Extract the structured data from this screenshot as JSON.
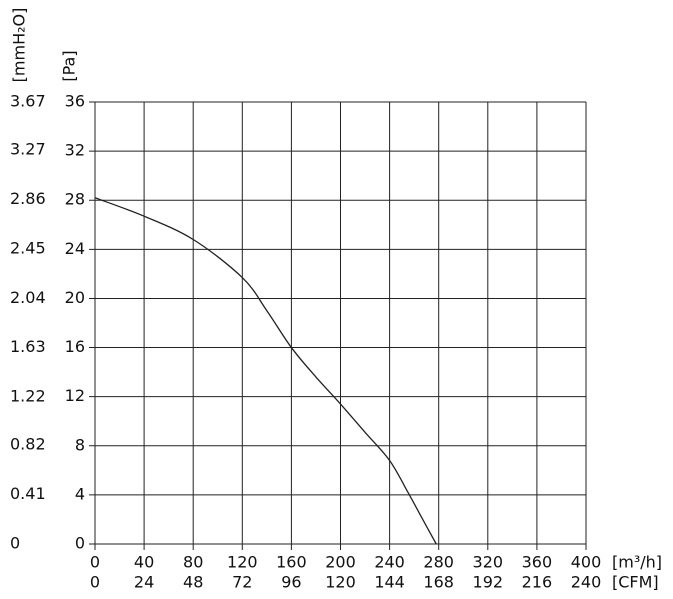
{
  "chart_data": {
    "type": "line",
    "x": [
      0,
      40,
      80,
      120,
      140,
      160,
      180,
      200,
      220,
      240,
      255,
      267,
      278
    ],
    "values": [
      28.2,
      26.7,
      24.8,
      21.7,
      19.0,
      16.0,
      13.6,
      11.4,
      9.1,
      6.8,
      4.2,
      2.0,
      0
    ],
    "color": "#222222",
    "xlim": [
      0,
      400
    ],
    "xticks": [
      0,
      40,
      80,
      120,
      160,
      200,
      240,
      280,
      320,
      360,
      400
    ],
    "x2lim": [
      0,
      240
    ],
    "x2ticks": [
      0,
      24,
      48,
      72,
      96,
      120,
      144,
      168,
      192,
      216,
      240
    ],
    "ylim": [
      0,
      36
    ],
    "yticks": [
      0,
      4,
      8,
      12,
      16,
      20,
      24,
      28,
      32,
      36
    ],
    "y2lim": [
      0,
      3.67
    ],
    "y2ticks": [
      0,
      0.41,
      0.82,
      1.22,
      1.63,
      2.04,
      2.45,
      2.86,
      3.27,
      3.67
    ],
    "xlabel": "[m³/h]",
    "x2label": "[CFM]",
    "ylabel": "[Pa]",
    "y2label": "[mmH₂O]",
    "grid": true
  }
}
